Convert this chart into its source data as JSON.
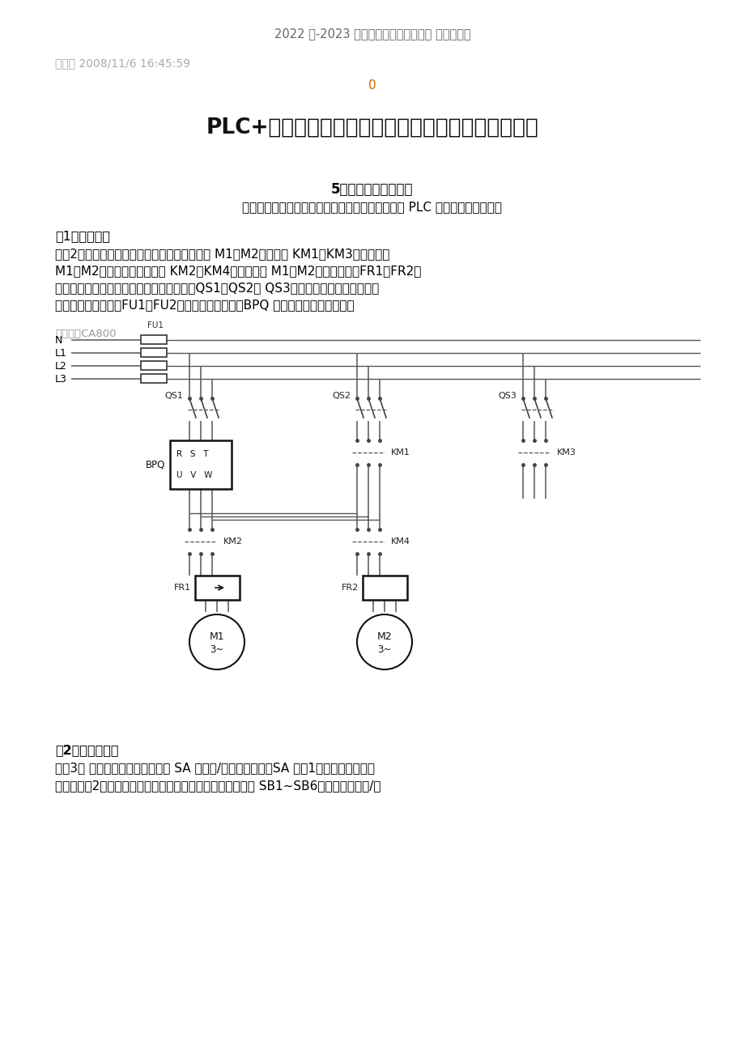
{
  "header": "2022 年-2023 年建筑工程管理行业文档 齐鲁斌创作",
  "date_line": "发表于 2008/11/6 16:45:59",
  "zero": "0",
  "main_title": "PLC+风光变频器的小区恒压供水控制应用实例（二）",
  "section5_title": "5电气控制系统原理图",
  "section5_sub": "电气控制系统原理图包括主电路图、控制电路图及 PLC 外围接线图三部分。",
  "section1_title": "（1）主电路图",
  "para1_line1": "如图2所示为电控系统主电路。二台电机分别为 M1、M2。接触器 KM1、KM3，分别控制",
  "para1_line2": "M1、M2的工频运行；接触器 KM2、KM4，分别控制 M1、M2的变频运行；FR1、FR2分",
  "para1_line3": "别为二台水泵电机过载保护用的热继电器；QS1、QS2和 QS3分别为变频器和二台泵电机",
  "para1_line4": "主电路的隔离开关；FU1、FU2为主电路的熳断器；BPQ 为风光供水专用变频器。",
  "watermark": "版权所有CA800",
  "section2_title": "（2）控制电路图",
  "para2_line1": "如图3所 示为电控系统电路。图中 SA 为手动/自动转换开关，SA 打在1的位置为手动控制",
  "para2_line2": "状态，打在2的状态为自动控制状态。手动运行时，可用按鈕 SB1~SB6控制二台泵的起/停",
  "bg_color": "#ffffff",
  "header_color": "#666666",
  "date_color": "#aaaaaa",
  "zero_color": "#cc6600",
  "line_color": "#555555"
}
